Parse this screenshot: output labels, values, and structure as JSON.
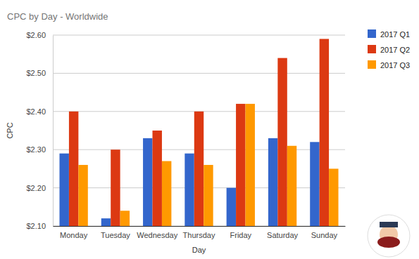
{
  "chart_data": {
    "type": "bar",
    "title": "CPC by Day - Worldwide",
    "x_label": "Day",
    "y_label": "CPC",
    "categories": [
      "Monday",
      "Tuesday",
      "Wednesday",
      "Thursday",
      "Friday",
      "Saturday",
      "Sunday"
    ],
    "series": [
      {
        "name": "2017 Q1",
        "color": "#3366cc",
        "values": [
          2.29,
          2.12,
          2.33,
          2.29,
          2.2,
          2.33,
          2.32
        ]
      },
      {
        "name": "2017 Q2",
        "color": "#dc3912",
        "values": [
          2.4,
          2.3,
          2.35,
          2.4,
          2.42,
          2.54,
          2.59
        ]
      },
      {
        "name": "2017 Q3",
        "color": "#ff9900",
        "values": [
          2.26,
          2.14,
          2.27,
          2.26,
          2.42,
          2.31,
          2.25
        ]
      }
    ],
    "ylim": [
      2.1,
      2.6
    ],
    "yticks": [
      {
        "value": 2.1,
        "label": "$2.10"
      },
      {
        "value": 2.2,
        "label": "$2.20"
      },
      {
        "value": 2.3,
        "label": "$2.30"
      },
      {
        "value": 2.4,
        "label": "$2.40"
      },
      {
        "value": 2.5,
        "label": "$2.50"
      },
      {
        "value": 2.6,
        "label": "$2.60"
      }
    ],
    "grid": true,
    "legend": "top-right"
  }
}
